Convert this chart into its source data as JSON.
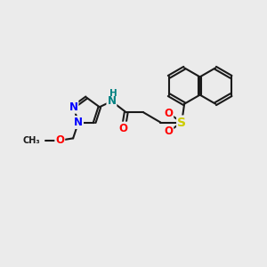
{
  "bg_color": "#ebebeb",
  "bond_color": "#1a1a1a",
  "bond_width": 1.5,
  "atom_colors": {
    "N": "#0000ff",
    "O": "#ff0000",
    "S": "#cccc00",
    "H": "#008080",
    "C": "#1a1a1a"
  },
  "font_size": 8.5,
  "fig_width": 3.0,
  "fig_height": 3.0,
  "xlim": [
    0,
    10
  ],
  "ylim": [
    0,
    10
  ]
}
